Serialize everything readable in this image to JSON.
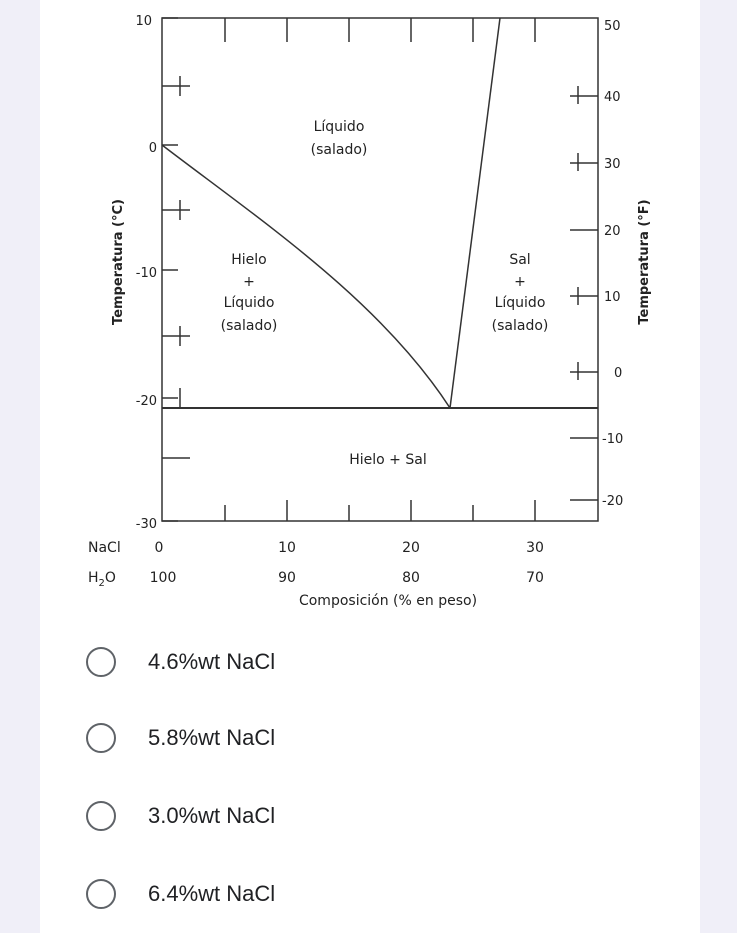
{
  "diagram": {
    "left_axis": {
      "label": "Temperatura (°C)",
      "ticks": [
        "10",
        "0",
        "-10",
        "-20",
        "-30"
      ]
    },
    "right_axis": {
      "label": "Temperatura (°F)",
      "ticks": [
        "50",
        "40",
        "30",
        "20",
        "10",
        "0",
        "-10",
        "-20"
      ]
    },
    "regions": {
      "liquid": [
        "Líquido",
        "(salado)"
      ],
      "ice_liquid": [
        "Hielo",
        "+",
        "Líquido",
        "(salado)"
      ],
      "salt_liquid": [
        "Sal",
        "+",
        "Líquido",
        "(salado)"
      ],
      "ice_salt": "Hielo + Sal"
    },
    "bottom_axis": {
      "nacl_label": "NaCl",
      "nacl_ticks": [
        "0",
        "10",
        "20",
        "30"
      ],
      "h2o_label_main": "H",
      "h2o_label_sub": "2",
      "h2o_label_tail": "O",
      "h2o_ticks": [
        "100",
        "90",
        "80",
        "70"
      ],
      "title": "Composición (% en peso)"
    }
  },
  "options": [
    {
      "label": "4.6%wt NaCl"
    },
    {
      "label": "5.8%wt NaCl"
    },
    {
      "label": "3.0%wt NaCl"
    },
    {
      "label": "6.4%wt NaCl"
    }
  ]
}
